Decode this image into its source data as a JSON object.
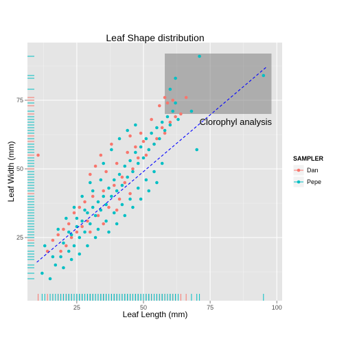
{
  "chart_data": {
    "type": "scatter",
    "title": "Leaf Shape distribution",
    "xlabel": "Leaf Length (mm)",
    "ylabel": "Leaf Width (mm)",
    "xlim": [
      6.5,
      102
    ],
    "ylim": [
      2,
      96
    ],
    "xticks": [
      25,
      50,
      75,
      100
    ],
    "yticks": [
      25,
      50,
      75
    ],
    "grid": true,
    "legend": {
      "title": "SAMPLER",
      "placement": "right",
      "entries": [
        {
          "name": "Dan",
          "color": "#f8766d"
        },
        {
          "name": "Pepe",
          "color": "#00bfc4"
        }
      ]
    },
    "annotation": {
      "text": "Clorophyl analysis",
      "x": 71,
      "y": 66,
      "rect": {
        "x0": 58,
        "x1": 98,
        "y0": 70,
        "y1": 92
      }
    },
    "trend_line": {
      "x": [
        10,
        96
      ],
      "y": [
        16,
        87
      ],
      "color": "#0000ff",
      "style": "dashed"
    },
    "series": [
      {
        "name": "Dan",
        "color": "#f8766d",
        "points": [
          [
            58,
            76
          ],
          [
            59,
            74
          ],
          [
            61,
            75
          ],
          [
            66,
            76
          ],
          [
            64,
            70
          ],
          [
            10.5,
            55
          ],
          [
            56,
            73
          ],
          [
            53,
            68
          ],
          [
            49,
            63
          ],
          [
            45,
            62
          ],
          [
            38,
            59
          ],
          [
            34,
            55
          ],
          [
            30,
            48
          ],
          [
            32,
            51
          ],
          [
            36,
            49
          ],
          [
            40,
            52
          ],
          [
            44,
            56
          ],
          [
            47,
            58
          ],
          [
            50,
            60
          ],
          [
            52,
            57
          ],
          [
            55,
            61
          ],
          [
            57,
            65
          ],
          [
            42,
            47
          ],
          [
            39,
            44
          ],
          [
            35,
            42
          ],
          [
            31,
            40
          ],
          [
            28,
            38
          ],
          [
            26,
            36
          ],
          [
            24,
            34
          ],
          [
            22,
            30
          ],
          [
            20,
            28
          ],
          [
            18,
            26
          ],
          [
            16,
            24
          ],
          [
            14,
            20
          ],
          [
            46,
            50
          ],
          [
            48,
            54
          ],
          [
            41,
            39
          ],
          [
            37,
            36
          ],
          [
            33,
            33
          ],
          [
            29,
            31
          ],
          [
            27,
            29
          ],
          [
            25,
            27
          ],
          [
            23,
            25
          ],
          [
            21,
            22
          ],
          [
            19,
            20
          ],
          [
            43,
            45
          ],
          [
            51,
            55
          ],
          [
            54,
            59
          ],
          [
            58,
            63
          ],
          [
            60,
            67
          ],
          [
            62,
            69
          ],
          [
            45,
            41
          ],
          [
            40,
            35
          ],
          [
            35,
            30
          ],
          [
            30,
            27
          ]
        ]
      },
      {
        "name": "Pepe",
        "color": "#00bfc4",
        "points": [
          [
            71,
            91
          ],
          [
            95,
            84
          ],
          [
            62,
            83
          ],
          [
            68,
            71
          ],
          [
            70,
            57
          ],
          [
            60,
            79
          ],
          [
            62,
            74
          ],
          [
            12,
            12
          ],
          [
            15,
            10
          ],
          [
            16,
            18
          ],
          [
            13,
            22
          ],
          [
            17,
            15
          ],
          [
            19,
            18
          ],
          [
            20,
            23
          ],
          [
            22,
            20
          ],
          [
            23,
            26
          ],
          [
            24,
            22
          ],
          [
            25,
            29
          ],
          [
            26,
            25
          ],
          [
            27,
            31
          ],
          [
            28,
            27
          ],
          [
            29,
            34
          ],
          [
            30,
            30
          ],
          [
            31,
            36
          ],
          [
            32,
            33
          ],
          [
            33,
            38
          ],
          [
            34,
            35
          ],
          [
            35,
            40
          ],
          [
            36,
            37
          ],
          [
            37,
            43
          ],
          [
            38,
            40
          ],
          [
            39,
            46
          ],
          [
            40,
            42
          ],
          [
            41,
            48
          ],
          [
            42,
            44
          ],
          [
            43,
            51
          ],
          [
            44,
            47
          ],
          [
            45,
            53
          ],
          [
            46,
            49
          ],
          [
            47,
            56
          ],
          [
            48,
            52
          ],
          [
            49,
            58
          ],
          [
            50,
            54
          ],
          [
            51,
            61
          ],
          [
            52,
            57
          ],
          [
            53,
            63
          ],
          [
            54,
            59
          ],
          [
            55,
            65
          ],
          [
            56,
            61
          ],
          [
            57,
            67
          ],
          [
            58,
            64
          ],
          [
            59,
            69
          ],
          [
            60,
            66
          ],
          [
            61,
            71
          ],
          [
            63,
            68
          ],
          [
            35,
            52
          ],
          [
            38,
            57
          ],
          [
            41,
            61
          ],
          [
            44,
            64
          ],
          [
            47,
            66
          ],
          [
            30,
            45
          ],
          [
            27,
            40
          ],
          [
            24,
            36
          ],
          [
            21,
            32
          ],
          [
            18,
            28
          ],
          [
            33,
            28
          ],
          [
            36,
            31
          ],
          [
            39,
            34
          ],
          [
            42,
            37
          ],
          [
            45,
            39
          ],
          [
            48,
            43
          ],
          [
            51,
            46
          ],
          [
            54,
            49
          ],
          [
            57,
            52
          ],
          [
            26,
            19
          ],
          [
            29,
            22
          ],
          [
            32,
            25
          ],
          [
            20,
            14
          ],
          [
            23,
            17
          ],
          [
            37,
            27
          ],
          [
            40,
            30
          ],
          [
            43,
            33
          ],
          [
            46,
            36
          ],
          [
            49,
            39
          ],
          [
            52,
            42
          ],
          [
            55,
            45
          ],
          [
            31,
            42
          ],
          [
            34,
            46
          ],
          [
            28,
            35
          ],
          [
            25,
            32
          ],
          [
            22,
            27
          ]
        ]
      }
    ]
  }
}
